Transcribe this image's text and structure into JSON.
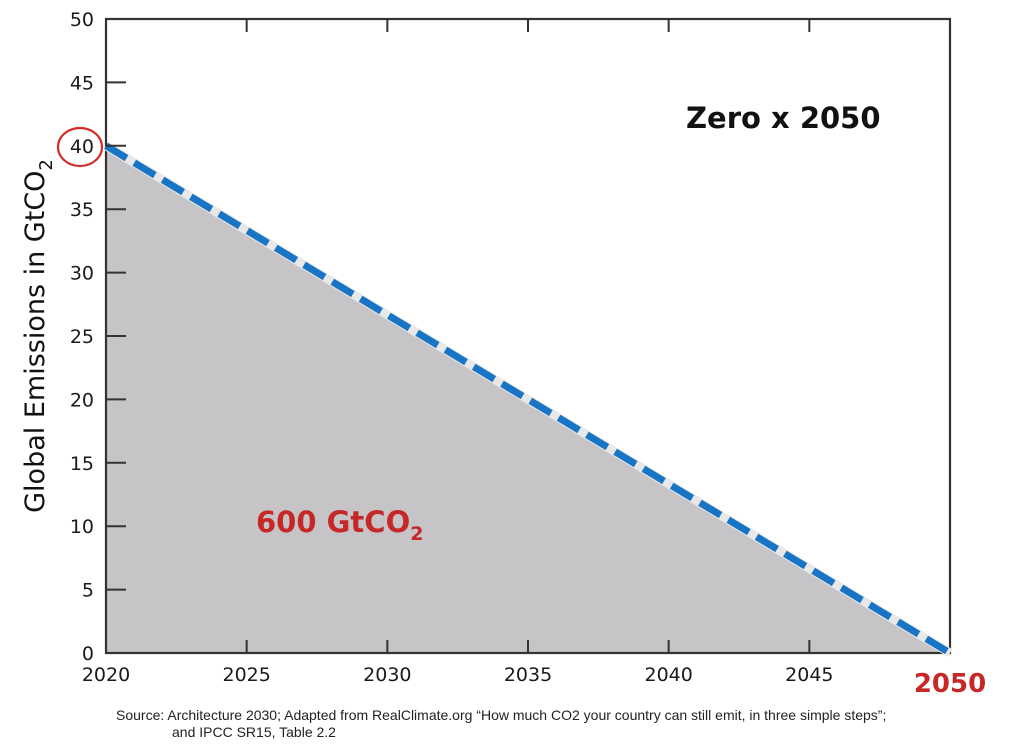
{
  "chart_data": {
    "type": "area",
    "title": "",
    "xlabel": "",
    "ylabel": "Global Emissions in GtCO",
    "ylabel_subscript": "2",
    "xlim": [
      2020,
      2050
    ],
    "ylim": [
      0,
      50
    ],
    "x_ticks": [
      2020,
      2025,
      2030,
      2035,
      2040,
      2045,
      2050
    ],
    "x_tick_labels": [
      "2020",
      "2025",
      "2030",
      "2035",
      "2040",
      "2045"
    ],
    "x_end_label": "2050",
    "y_ticks": [
      0,
      5,
      10,
      15,
      20,
      25,
      30,
      35,
      40,
      45,
      50
    ],
    "y_tick_labels": [
      "0",
      "5",
      "10",
      "15",
      "20",
      "25",
      "30",
      "35",
      "40",
      "45",
      "50"
    ],
    "highlighted_y_tick": 40,
    "grid": false,
    "series": [
      {
        "name": "Zero x 2050 pathway",
        "style": "dashed",
        "x": [
          2020,
          2050
        ],
        "y": [
          40,
          0
        ]
      }
    ],
    "annotations": {
      "scenario_label": "Zero x 2050",
      "area_label": "600 GtCO",
      "area_label_subscript": "2"
    },
    "colors": {
      "line": "#1874c4",
      "area_fill": "#c6c4c6",
      "highlight": "#d32f2f",
      "axis": "#333333"
    }
  },
  "source": {
    "line1": "Source: Architecture 2030; Adapted from RealClimate.org “How much CO2 your country can still emit, in three simple steps”;",
    "line2": "and IPCC SR15, Table 2.2"
  }
}
